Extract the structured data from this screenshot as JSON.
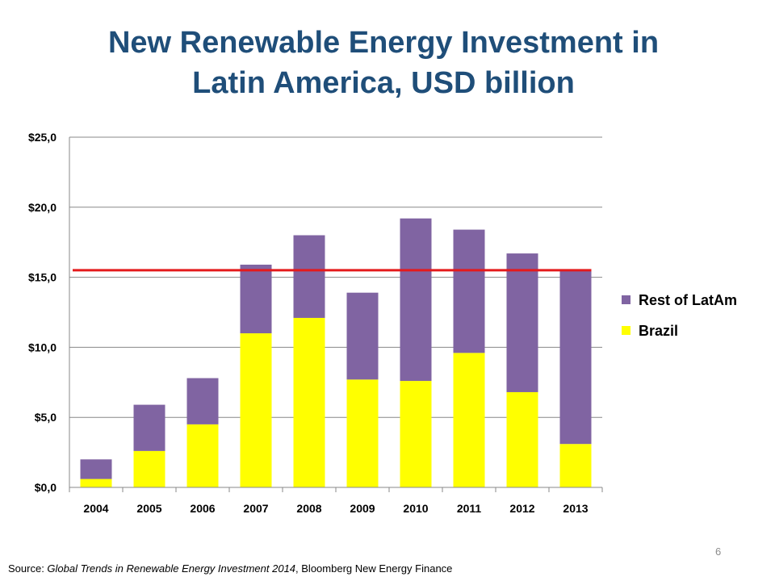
{
  "slide": {
    "title_line1": "New Renewable Energy Investment in",
    "title_line2": "Latin America, USD billion",
    "page_number": "6",
    "source_prefix": "Source: ",
    "source_title": "Global Trends in Renewable Energy Investment 2014",
    "source_suffix": ", Bloomberg New Energy Finance"
  },
  "colors": {
    "title": "#1F4E79",
    "brazil": "#FFFF00",
    "rest": "#8064A2",
    "reference_line": "#E41A1C",
    "gridline": "#888888"
  },
  "chart_data": {
    "type": "bar",
    "stacked": true,
    "categories": [
      "2004",
      "2005",
      "2006",
      "2007",
      "2008",
      "2009",
      "2010",
      "2011",
      "2012",
      "2013"
    ],
    "series": [
      {
        "name": "Brazil",
        "values": [
          0.6,
          2.6,
          4.5,
          11.0,
          12.1,
          7.7,
          7.6,
          9.6,
          6.8,
          3.1
        ]
      },
      {
        "name": "Rest of LatAm",
        "values": [
          1.4,
          3.3,
          3.3,
          4.9,
          5.9,
          6.2,
          11.6,
          8.8,
          9.9,
          12.4
        ]
      }
    ],
    "reference_line": {
      "value": 15.5
    },
    "ylim": [
      0,
      25
    ],
    "yticks": [
      "$0,0",
      "$5,0",
      "$10,0",
      "$15,0",
      "$20,0",
      "$25,0"
    ],
    "grid": true,
    "legend_position": "right",
    "legend": [
      "Rest of LatAm",
      "Brazil"
    ]
  }
}
